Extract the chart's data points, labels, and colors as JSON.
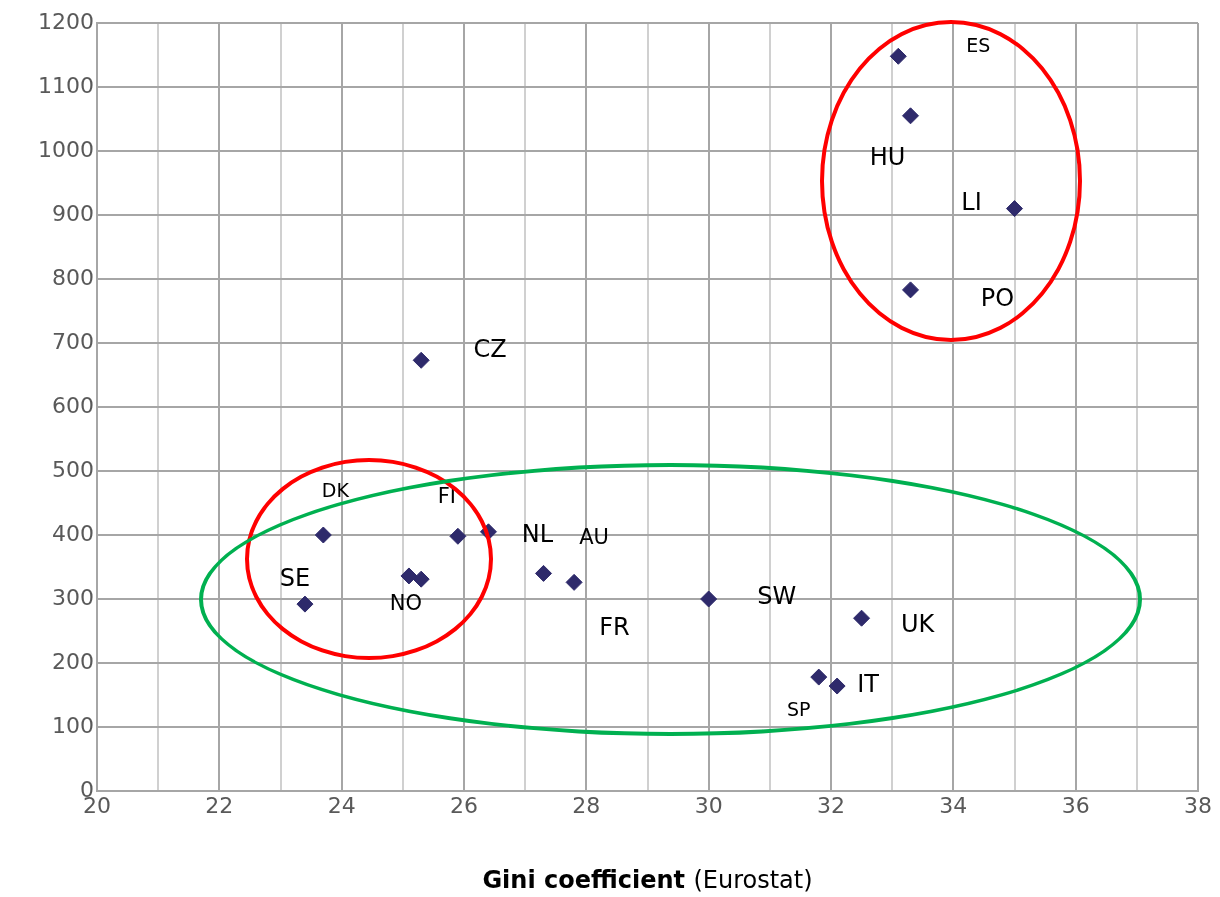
{
  "chart_data": {
    "type": "scatter",
    "xlabel": "Gini coefficient (Eurostat)",
    "x": [
      33.1,
      33.3,
      35.0,
      33.3,
      25.3,
      23.7,
      25.9,
      26.4,
      27.3,
      27.8,
      23.4,
      25.1,
      25.3,
      30.0,
      32.5,
      31.8,
      32.1
    ],
    "values": [
      1148,
      1055,
      910,
      783,
      673,
      400,
      398,
      405,
      340,
      326,
      292,
      336,
      331,
      300,
      270,
      178,
      164
    ],
    "color": "#2e2a6b",
    "marker": "diamond",
    "grid": true,
    "legend": false,
    "xlim": [
      20,
      38
    ],
    "xticks": [
      20,
      {
        "value": 21,
        "label": null
      },
      22,
      {
        "value": 23,
        "label": null
      },
      24,
      {
        "value": 25,
        "label": null
      },
      26,
      {
        "value": 27,
        "label": null
      },
      28,
      {
        "value": 29,
        "label": null
      },
      30,
      {
        "value": 31,
        "label": null
      },
      32,
      {
        "value": 33,
        "label": null
      },
      34,
      {
        "value": 35,
        "label": null
      },
      36,
      {
        "value": 37,
        "label": null
      },
      38
    ],
    "ylim": [
      0,
      1200
    ],
    "yticks": [
      0,
      100,
      200,
      300,
      400,
      500,
      600,
      700,
      800,
      900,
      1000,
      1100,
      1200
    ],
    "annotations": [
      "ES",
      {
        "text": "HU",
        "x": 33.3,
        "y": 1055
      },
      {
        "text": "LI",
        "x": 35.0,
        "y": 910
      },
      {
        "text": "PO",
        "x": 33.3,
        "y": 783
      },
      {
        "text": "CZ",
        "x": 25.3,
        "y": 673
      },
      {
        "text": "DK",
        "x": 23.7,
        "y": 400
      },
      {
        "text": "FI",
        "x": 25.9,
        "y": 398
      },
      {
        "text": "NL",
        "x": 26.4,
        "y": 405
      },
      {
        "text": "FR",
        "x": 27.3,
        "y": 340
      },
      {
        "text": "AU",
        "x": 27.8,
        "y": 326
      },
      {
        "text": "SE",
        "x": 23.4,
        "y": 292
      },
      {
        "text": "NO",
        "x": 25.1,
        "y": 336
      },
      {
        "text": "SW",
        "x": 30.0,
        "y": 300
      },
      {
        "text": "UK",
        "x": 32.5,
        "y": 270
      },
      {
        "text": "SP",
        "x": 31.8,
        "y": 178
      },
      {
        "text": "IT",
        "x": 32.1,
        "y": 164
      }
    ]
  }
}
